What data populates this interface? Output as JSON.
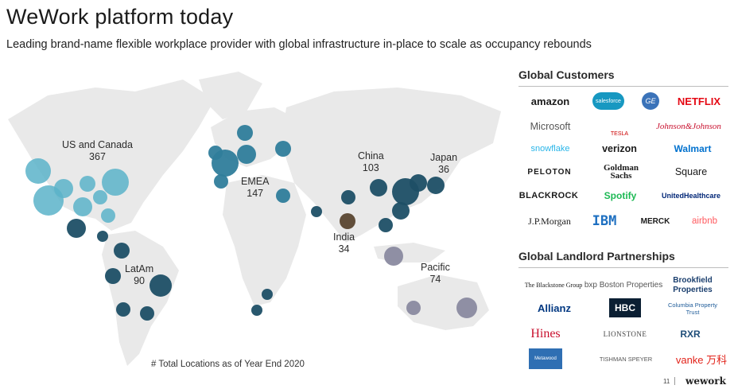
{
  "slide": {
    "title": "WeWork platform today",
    "subtitle": "Leading brand-name flexible workplace provider with global infrastructure in-place to scale as occupancy rebounds"
  },
  "map": {
    "regions": [
      {
        "name": "US and Canada",
        "count": "367"
      },
      {
        "name": "EMEA",
        "count": "147"
      },
      {
        "name": "China",
        "count": "103"
      },
      {
        "name": "Japan",
        "count": "36"
      },
      {
        "name": "India",
        "count": "34"
      },
      {
        "name": "LatAm",
        "count": "90"
      },
      {
        "name": "Pacific",
        "count": "74"
      }
    ],
    "footnote": "# Total Locations as of Year End 2020",
    "colors": {
      "us": "#5bb3c9",
      "dark": "#1e4f66",
      "mid": "#2f7d9b",
      "india": "#5a4630",
      "pacific": "#8a8aa0",
      "land": "#e9e9e9"
    }
  },
  "customers": {
    "heading": "Global Customers",
    "logos": [
      "amazon",
      "salesforce",
      "GE",
      "NETFLIX",
      "Microsoft",
      "TESLA",
      "Johnson&Johnson",
      "snowflake",
      "verizon",
      "Walmart",
      "PELOTON",
      "Goldman Sachs",
      "Square",
      "BLACKROCK",
      "Spotify",
      "UnitedHealthcare",
      "J.P.Morgan",
      "IBM",
      "MERCK",
      "airbnb"
    ]
  },
  "landlords": {
    "heading": "Global Landlord Partnerships",
    "logos": [
      "The Blackstone Group",
      "bxp Boston Properties",
      "Brookfield Properties",
      "Allianz",
      "HBC",
      "Columbia Property Trust",
      "Hines",
      "LIONSTONE",
      "RXR",
      "Metawood",
      "TISHMAN SPEYER",
      "vanke 万科"
    ]
  },
  "footer": {
    "page": "11",
    "brand": "wework"
  }
}
